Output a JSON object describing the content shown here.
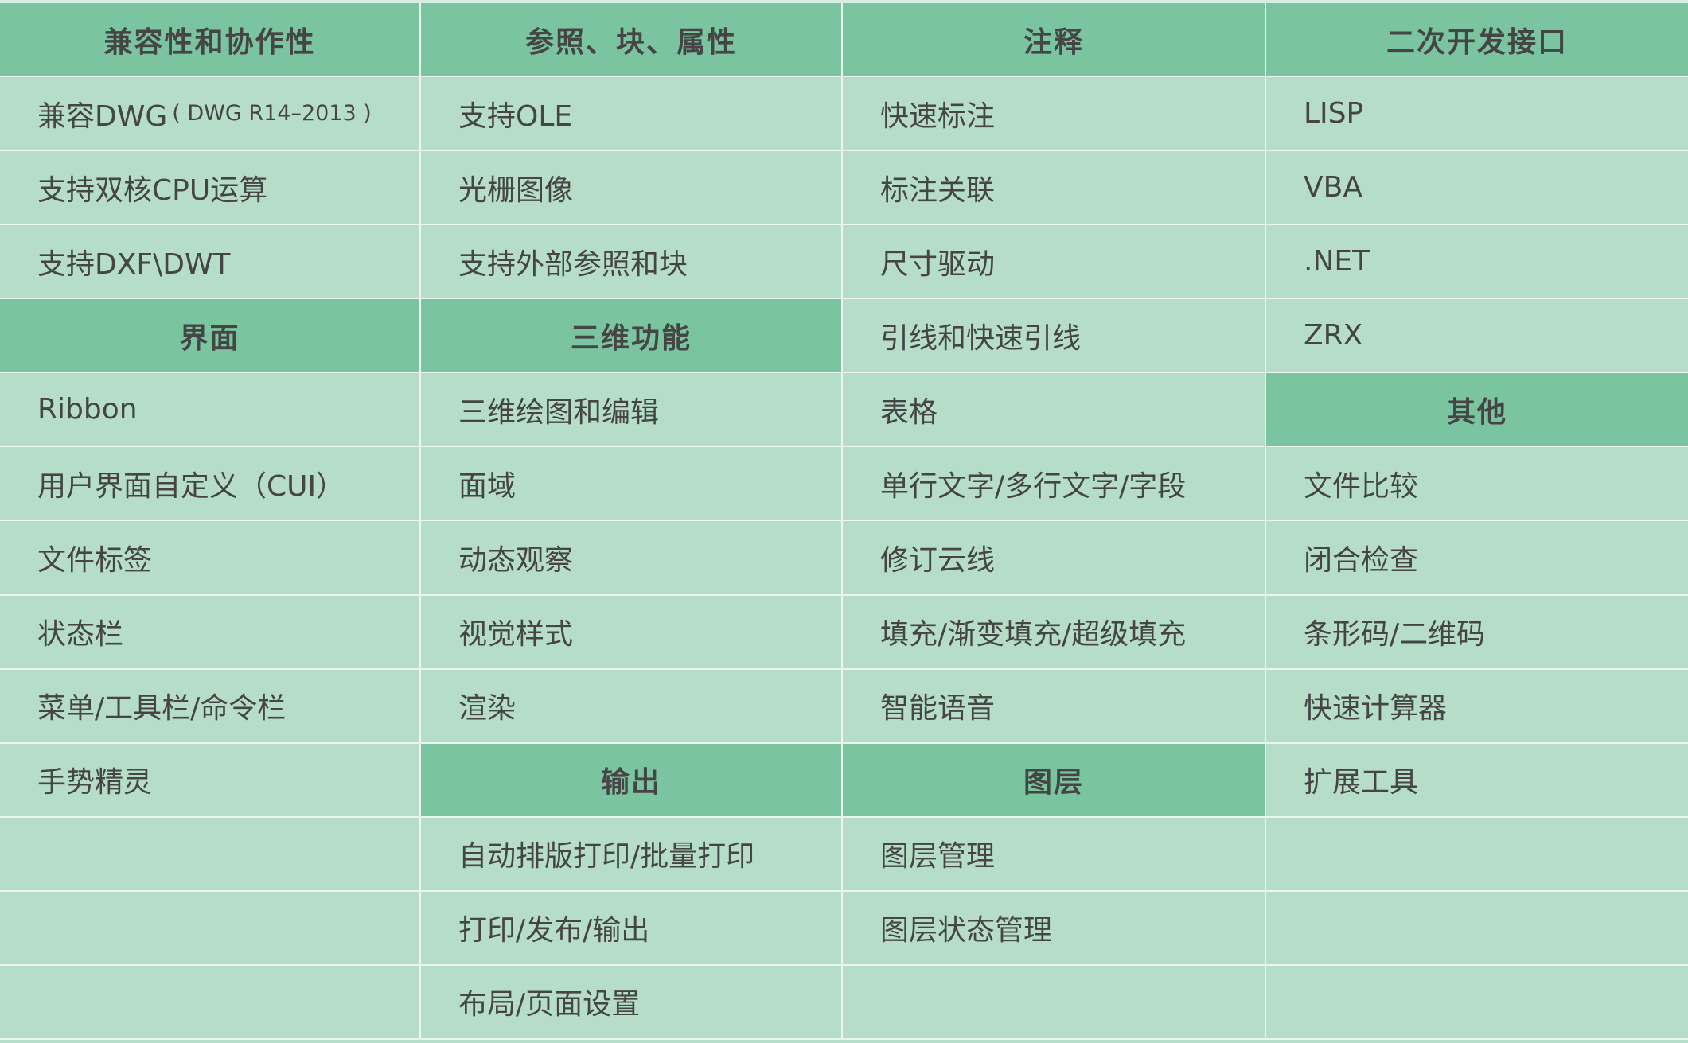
{
  "colors": {
    "header_bg": "#7ac4a0",
    "cell_bg": "#b5ddc8",
    "grid_line": "#eaf6ef",
    "text": "#454545"
  },
  "columns": [
    {
      "cells": [
        {
          "type": "header",
          "text": "兼容性和协作性"
        },
        {
          "type": "item",
          "text": "兼容DWG",
          "note": "( DWG R14–2013 )"
        },
        {
          "type": "item",
          "text": "支持双核CPU运算"
        },
        {
          "type": "item",
          "text": "支持DXF\\DWT"
        },
        {
          "type": "header",
          "text": "界面"
        },
        {
          "type": "item",
          "text": "Ribbon"
        },
        {
          "type": "item",
          "text": "用户界面自定义（CUI）"
        },
        {
          "type": "item",
          "text": "文件标签"
        },
        {
          "type": "item",
          "text": "状态栏"
        },
        {
          "type": "item",
          "text": "菜单/工具栏/命令栏"
        },
        {
          "type": "item",
          "text": "手势精灵"
        },
        {
          "type": "empty"
        },
        {
          "type": "empty"
        },
        {
          "type": "empty"
        }
      ]
    },
    {
      "cells": [
        {
          "type": "header",
          "text": "参照、块、属性"
        },
        {
          "type": "item",
          "text": "支持OLE"
        },
        {
          "type": "item",
          "text": "光栅图像"
        },
        {
          "type": "item",
          "text": "支持外部参照和块"
        },
        {
          "type": "header",
          "text": "三维功能"
        },
        {
          "type": "item",
          "text": "三维绘图和编辑"
        },
        {
          "type": "item",
          "text": "面域"
        },
        {
          "type": "item",
          "text": "动态观察"
        },
        {
          "type": "item",
          "text": "视觉样式"
        },
        {
          "type": "item",
          "text": "渲染"
        },
        {
          "type": "header",
          "text": "输出"
        },
        {
          "type": "item",
          "text": "自动排版打印/批量打印"
        },
        {
          "type": "item",
          "text": "打印/发布/输出"
        },
        {
          "type": "item",
          "text": "布局/页面设置"
        }
      ]
    },
    {
      "cells": [
        {
          "type": "header",
          "text": "注释"
        },
        {
          "type": "item",
          "text": "快速标注"
        },
        {
          "type": "item",
          "text": "标注关联"
        },
        {
          "type": "item",
          "text": "尺寸驱动"
        },
        {
          "type": "item",
          "text": "引线和快速引线"
        },
        {
          "type": "item",
          "text": "表格"
        },
        {
          "type": "item",
          "text": "单行文字/多行文字/字段"
        },
        {
          "type": "item",
          "text": "修订云线"
        },
        {
          "type": "item",
          "text": "填充/渐变填充/超级填充"
        },
        {
          "type": "item",
          "text": "智能语音"
        },
        {
          "type": "header",
          "text": "图层"
        },
        {
          "type": "item",
          "text": "图层管理"
        },
        {
          "type": "item",
          "text": "图层状态管理"
        },
        {
          "type": "empty"
        }
      ]
    },
    {
      "cells": [
        {
          "type": "header",
          "text": "二次开发接口"
        },
        {
          "type": "item",
          "text": "LISP"
        },
        {
          "type": "item",
          "text": "VBA"
        },
        {
          "type": "item",
          "text": ".NET"
        },
        {
          "type": "item",
          "text": "ZRX"
        },
        {
          "type": "header",
          "text": "其他"
        },
        {
          "type": "item",
          "text": "文件比较"
        },
        {
          "type": "item",
          "text": "闭合检查"
        },
        {
          "type": "item",
          "text": "条形码/二维码"
        },
        {
          "type": "item",
          "text": "快速计算器"
        },
        {
          "type": "item",
          "text": "扩展工具"
        },
        {
          "type": "empty"
        },
        {
          "type": "empty"
        },
        {
          "type": "empty"
        }
      ]
    }
  ]
}
